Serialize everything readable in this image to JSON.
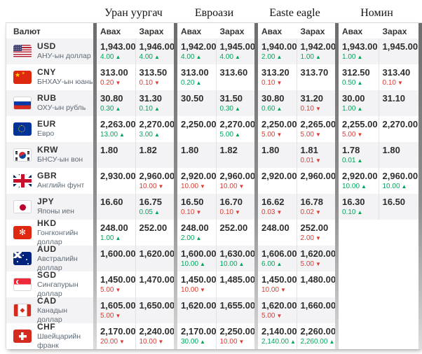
{
  "columns": {
    "currency": "Валют",
    "buy": "Авах",
    "sell": "Зарах"
  },
  "exchanges": [
    "Уран уургач",
    "Евроази",
    "Easte eagle",
    "Номин"
  ],
  "icons": {
    "up_arrow": "▲",
    "down_arrow": "▼"
  },
  "colors": {
    "up": "#00a65a",
    "down": "#dc3b32",
    "alt_row": "#f3f3f5"
  },
  "rows": [
    {
      "code": "USD",
      "name": "АНУ-ын доллар",
      "flag": "usd",
      "quotes": [
        {
          "buy": "1,943.00",
          "buy_chg": "4.00",
          "buy_dir": "up",
          "sell": "1,946.00",
          "sell_chg": "4.00",
          "sell_dir": "up"
        },
        {
          "buy": "1,942.00",
          "buy_chg": "4.00",
          "buy_dir": "up",
          "sell": "1,945.00",
          "sell_chg": "4.00",
          "sell_dir": "up"
        },
        {
          "buy": "1,940.00",
          "buy_chg": "2.00",
          "buy_dir": "up",
          "sell": "1,942.00",
          "sell_chg": "1.00",
          "sell_dir": "up"
        },
        {
          "buy": "1,943.00",
          "buy_chg": "1.00",
          "buy_dir": "up",
          "sell": "1,945.00"
        }
      ]
    },
    {
      "code": "CNY",
      "name": "БНХАУ-ын юань",
      "flag": "cny",
      "quotes": [
        {
          "buy": "313.00",
          "buy_chg": "0.20",
          "buy_dir": "down",
          "sell": "313.50",
          "sell_chg": "0.10",
          "sell_dir": "down"
        },
        {
          "buy": "313.00",
          "buy_chg": "0.20",
          "buy_dir": "up",
          "sell": "313.60"
        },
        {
          "buy": "313.20",
          "buy_chg": "0.10",
          "buy_dir": "down",
          "sell": "313.70"
        },
        {
          "buy": "312.50",
          "buy_chg": "0.50",
          "buy_dir": "up",
          "sell": "313.40",
          "sell_chg": "0.10",
          "sell_dir": "down"
        }
      ]
    },
    {
      "code": "RUB",
      "name": "ОХУ-ын рубль",
      "flag": "rub",
      "quotes": [
        {
          "buy": "30.80",
          "buy_chg": "0.30",
          "buy_dir": "up",
          "sell": "31.30",
          "sell_chg": "0.10",
          "sell_dir": "up"
        },
        {
          "buy": "30.50",
          "sell": "31.50",
          "sell_chg": "0.30",
          "sell_dir": "up"
        },
        {
          "buy": "30.80",
          "buy_chg": "0.60",
          "buy_dir": "up",
          "sell": "31.20",
          "sell_chg": "0.10",
          "sell_dir": "down"
        },
        {
          "buy": "30.00",
          "buy_chg": "1.00",
          "buy_dir": "up",
          "sell": "31.10"
        }
      ]
    },
    {
      "code": "EUR",
      "name": "Евро",
      "flag": "eur",
      "quotes": [
        {
          "buy": "2,263.00",
          "buy_chg": "13.00",
          "buy_dir": "up",
          "sell": "2,270.00",
          "sell_chg": "3.00",
          "sell_dir": "up"
        },
        {
          "buy": "2,250.00",
          "sell": "2,270.00",
          "sell_chg": "5.00",
          "sell_dir": "up"
        },
        {
          "buy": "2,250.00",
          "buy_chg": "5.00",
          "buy_dir": "down",
          "sell": "2,265.00",
          "sell_chg": "5.00",
          "sell_dir": "down"
        },
        {
          "buy": "2,255.00",
          "buy_chg": "5.00",
          "buy_dir": "down",
          "sell": "2,270.00"
        }
      ]
    },
    {
      "code": "KRW",
      "name": "БНСУ-ын вон",
      "flag": "krw",
      "quotes": [
        {
          "buy": "1.80",
          "sell": "1.82"
        },
        {
          "buy": "1.80",
          "sell": "1.82"
        },
        {
          "buy": "1.80",
          "sell": "1.81",
          "sell_chg": "0.01",
          "sell_dir": "down"
        },
        {
          "buy": "1.78",
          "buy_chg": "0.01",
          "buy_dir": "up",
          "sell": "1.80"
        }
      ]
    },
    {
      "code": "GBR",
      "name": "Английн фунт",
      "flag": "gbr",
      "quotes": [
        {
          "buy": "2,930.00",
          "sell": "2,960.00",
          "sell_chg": "10.00",
          "sell_dir": "down"
        },
        {
          "buy": "2,920.00",
          "buy_chg": "10.00",
          "buy_dir": "down",
          "sell": "2,960.00",
          "sell_chg": "10.00",
          "sell_dir": "down"
        },
        {
          "buy": "2,920.00",
          "sell": "2,960.00"
        },
        {
          "buy": "2,920.00",
          "buy_chg": "10.00",
          "buy_dir": "up",
          "sell": "2,960.00",
          "sell_chg": "10.00",
          "sell_dir": "up"
        }
      ]
    },
    {
      "code": "JPY",
      "name": "Японы иен",
      "flag": "jpy",
      "quotes": [
        {
          "buy": "16.60",
          "sell": "16.75",
          "sell_chg": "0.05",
          "sell_dir": "up"
        },
        {
          "buy": "16.50",
          "buy_chg": "0.10",
          "buy_dir": "down",
          "sell": "16.70",
          "sell_chg": "0.10",
          "sell_dir": "down"
        },
        {
          "buy": "16.62",
          "buy_chg": "0.03",
          "buy_dir": "down",
          "sell": "16.78",
          "sell_chg": "0.02",
          "sell_dir": "down"
        },
        {
          "buy": "16.30",
          "buy_chg": "0.10",
          "buy_dir": "up",
          "sell": "16.50"
        }
      ]
    },
    {
      "code": "HKD",
      "name": "Гонгконгийн доллар",
      "flag": "hkd",
      "quotes": [
        {
          "buy": "248.00",
          "buy_chg": "1.00",
          "buy_dir": "up",
          "sell": "252.00"
        },
        {
          "buy": "248.00",
          "buy_chg": "2.00",
          "buy_dir": "up",
          "sell": "252.00"
        },
        {
          "buy": "248.00",
          "sell": "252.00",
          "sell_chg": "2.00",
          "sell_dir": "down"
        },
        null
      ]
    },
    {
      "code": "AUD",
      "name": "Австралийн доллар",
      "flag": "aud",
      "quotes": [
        {
          "buy": "1,600.00",
          "sell": "1,620.00"
        },
        {
          "buy": "1,600.00",
          "buy_chg": "10.00",
          "buy_dir": "up",
          "sell": "1,630.00",
          "sell_chg": "10.00",
          "sell_dir": "up"
        },
        {
          "buy": "1,606.00",
          "buy_chg": "6.00",
          "buy_dir": "up",
          "sell": "1,620.00",
          "sell_chg": "5.00",
          "sell_dir": "down"
        },
        null
      ]
    },
    {
      "code": "SGD",
      "name": "Сингапурын доллар",
      "flag": "sgd",
      "quotes": [
        {
          "buy": "1,450.00",
          "buy_chg": "5.00",
          "buy_dir": "down",
          "sell": "1,470.00"
        },
        {
          "buy": "1,450.00",
          "buy_chg": "10.00",
          "buy_dir": "down",
          "sell": "1,485.00"
        },
        {
          "buy": "1,450.00",
          "buy_chg": "10.00",
          "buy_dir": "down",
          "sell": "1,480.00"
        },
        null
      ]
    },
    {
      "code": "CAD",
      "name": "Канадын доллар",
      "flag": "cad",
      "quotes": [
        {
          "buy": "1,605.00",
          "buy_chg": "5.00",
          "buy_dir": "down",
          "sell": "1,650.00"
        },
        {
          "buy": "1,620.00",
          "sell": "1,655.00"
        },
        {
          "buy": "1,620.00",
          "buy_chg": "5.00",
          "buy_dir": "down",
          "sell": "1,660.00"
        },
        null
      ]
    },
    {
      "code": "CHF",
      "name": "Швейцарийн франк",
      "flag": "chf",
      "quotes": [
        {
          "buy": "2,170.00",
          "buy_chg": "20.00",
          "buy_dir": "down",
          "sell": "2,240.00",
          "sell_chg": "10.00",
          "sell_dir": "down"
        },
        {
          "buy": "2,170.00",
          "buy_chg": "30.00",
          "buy_dir": "up",
          "sell": "2,250.00",
          "sell_chg": "10.00",
          "sell_dir": "down"
        },
        {
          "buy": "2,140.00",
          "buy_chg": "2,140.00",
          "buy_dir": "up",
          "sell": "2,260.00",
          "sell_chg": "2,260.00",
          "sell_dir": "up"
        },
        null
      ]
    }
  ]
}
